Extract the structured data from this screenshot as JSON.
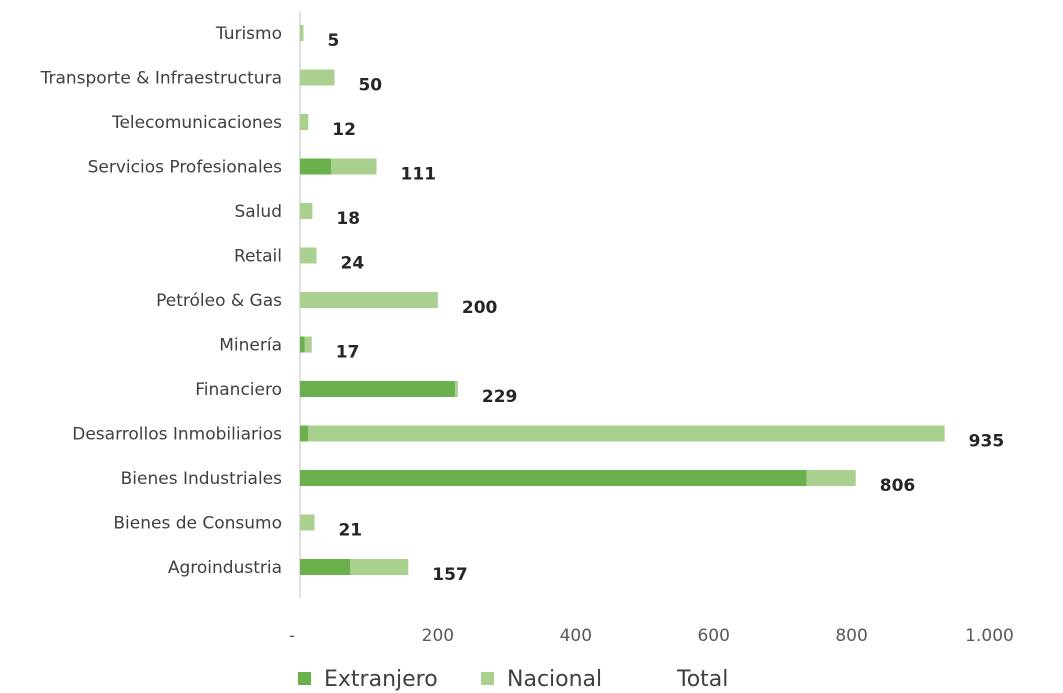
{
  "chart_data": {
    "type": "bar",
    "orientation": "horizontal",
    "stacked": true,
    "categories": [
      "Turismo",
      "Transporte & Infraestructura",
      "Telecomunicaciones",
      "Servicios Profesionales",
      "Salud",
      "Retail",
      "Petróleo & Gas",
      "Minería",
      "Financiero",
      "Desarrollos Inmobiliarios",
      "Bienes Industriales",
      "Bienes de Consumo",
      "Agroindustria"
    ],
    "series": [
      {
        "name": "Extranjero",
        "color": "#6ab04c",
        "values": [
          0,
          0,
          0,
          45,
          0,
          0,
          0,
          7,
          225,
          12,
          735,
          0,
          73
        ]
      },
      {
        "name": "Nacional",
        "color": "#a9d08e",
        "values": [
          5,
          50,
          12,
          66,
          18,
          24,
          200,
          10,
          4,
          923,
          71,
          21,
          84
        ]
      }
    ],
    "totals": {
      "name": "Total",
      "values": [
        5,
        50,
        12,
        111,
        18,
        24,
        200,
        17,
        229,
        935,
        806,
        21,
        157
      ],
      "labels": [
        "5",
        "50",
        "12",
        "111",
        "18",
        "24",
        "200",
        "17",
        "229",
        "935",
        "806",
        "21",
        "157"
      ]
    },
    "x_ticks": [
      "-",
      "200",
      "400",
      "600",
      "800",
      "1.000"
    ],
    "xlim": [
      0,
      1000
    ],
    "grid": false,
    "legend_position": "bottom"
  }
}
